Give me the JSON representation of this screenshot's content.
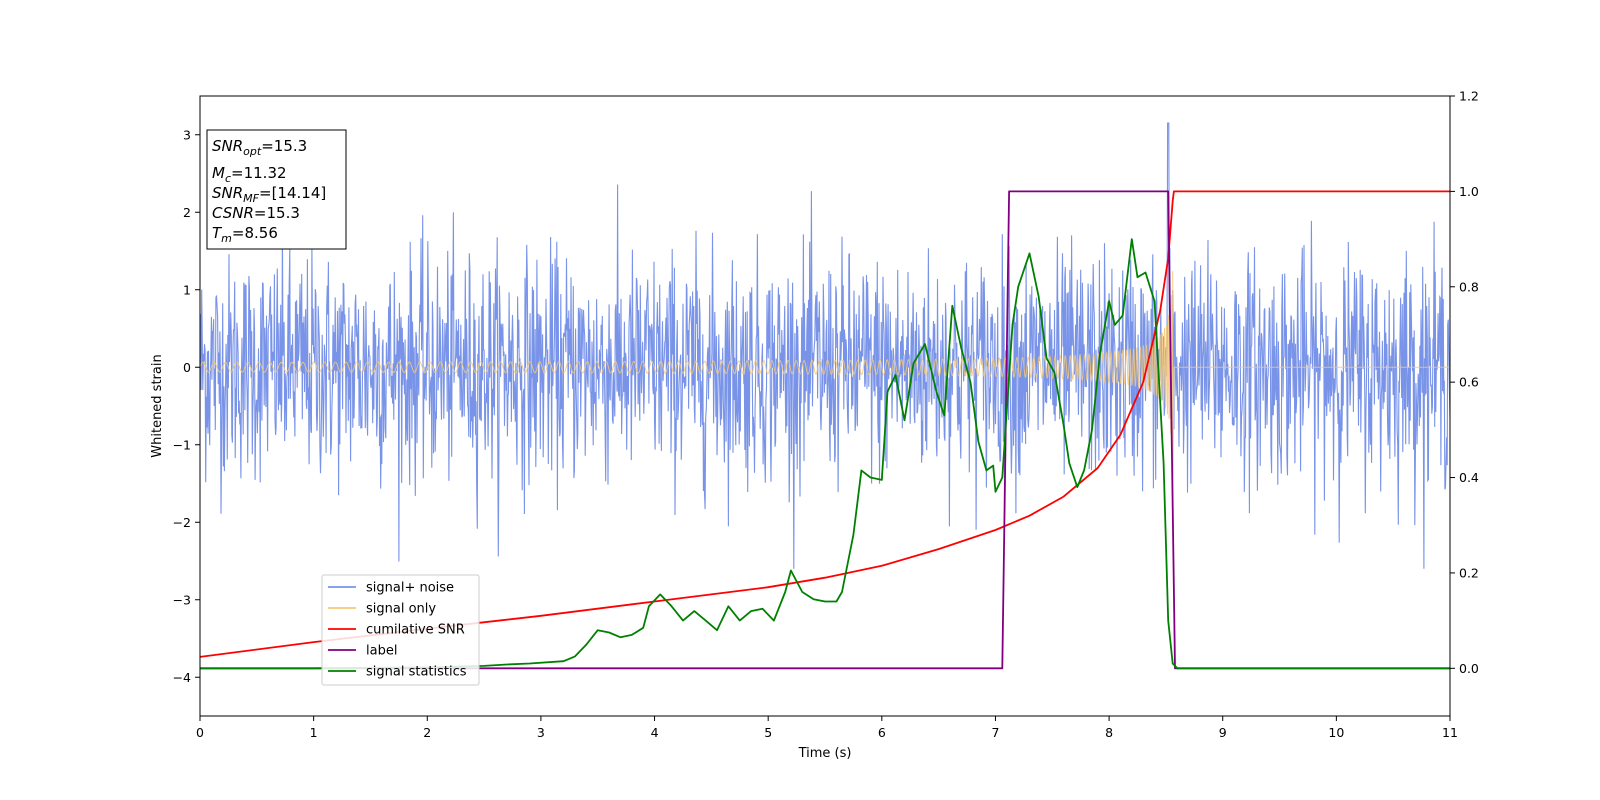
{
  "chart_data": {
    "type": "line",
    "xlabel": "Time (s)",
    "ylabel": "Whitened strain",
    "xlim": [
      0,
      11
    ],
    "ylim": [
      -4.5,
      3.5
    ],
    "y2lim": [
      -0.1,
      1.2
    ],
    "x_ticks": [
      "0",
      "1",
      "2",
      "3",
      "4",
      "5",
      "6",
      "7",
      "8",
      "9",
      "10",
      "11"
    ],
    "y_ticks": [
      "−4",
      "−3",
      "−2",
      "−1",
      "0",
      "1",
      "2",
      "3"
    ],
    "y2_ticks": [
      "0.0",
      "0.2",
      "0.4",
      "0.6",
      "0.8",
      "1.0",
      "1.2"
    ],
    "grid": false,
    "legend_position": "lower-left",
    "info_box": {
      "lines": [
        {
          "sym": "SNR",
          "sub": "opt",
          "rest": "=15.3"
        },
        {
          "sym": "M",
          "sub": "c",
          "rest": "=11.32"
        },
        {
          "sym": "SNR",
          "sub": "MF",
          "rest": "=[14.14]"
        },
        {
          "sym": "CSNR",
          "sub": "",
          "rest": "=15.3"
        },
        {
          "sym": "T",
          "sub": "m",
          "rest": "=8.56"
        }
      ]
    },
    "series": [
      {
        "name": "signal+ noise",
        "color": "#7893e8",
        "axis": "left",
        "description": "whitened noise with std ~0.75 spanning t=0..11, spikes to about ±2.5, peak 3.15 near t=8.52"
      },
      {
        "name": "signal only",
        "color": "#f5c878",
        "axis": "left",
        "chirp": {
          "t_merge": 8.56,
          "amp_start": 0.03,
          "amp_end": 1.25,
          "end_dip": -1.95
        }
      },
      {
        "name": "cumilative SNR",
        "color": "#ff0000",
        "axis": "right",
        "points": [
          [
            0,
            0.024
          ],
          [
            1,
            0.055
          ],
          [
            2,
            0.083
          ],
          [
            3,
            0.11
          ],
          [
            4,
            0.14
          ],
          [
            5,
            0.17
          ],
          [
            5.5,
            0.19
          ],
          [
            6,
            0.215
          ],
          [
            6.5,
            0.25
          ],
          [
            7,
            0.29
          ],
          [
            7.3,
            0.32
          ],
          [
            7.6,
            0.36
          ],
          [
            7.9,
            0.42
          ],
          [
            8.1,
            0.49
          ],
          [
            8.3,
            0.6
          ],
          [
            8.45,
            0.75
          ],
          [
            8.52,
            0.86
          ],
          [
            8.56,
            0.98
          ],
          [
            8.57,
            1.0
          ],
          [
            11,
            1.0
          ]
        ]
      },
      {
        "name": "label",
        "color": "#800080",
        "axis": "right",
        "points": [
          [
            0,
            0
          ],
          [
            7.06,
            0
          ],
          [
            7.12,
            1
          ],
          [
            8.52,
            1
          ],
          [
            8.58,
            0
          ],
          [
            11,
            0
          ]
        ]
      },
      {
        "name": "signal statistics",
        "color": "#008000",
        "axis": "right",
        "points": [
          [
            0,
            0
          ],
          [
            1,
            0.0
          ],
          [
            2,
            0.002
          ],
          [
            2.5,
            0.005
          ],
          [
            2.7,
            0.008
          ],
          [
            2.9,
            0.01
          ],
          [
            3.2,
            0.015
          ],
          [
            3.3,
            0.025
          ],
          [
            3.4,
            0.05
          ],
          [
            3.5,
            0.08
          ],
          [
            3.6,
            0.075
          ],
          [
            3.7,
            0.065
          ],
          [
            3.8,
            0.07
          ],
          [
            3.9,
            0.085
          ],
          [
            3.95,
            0.13
          ],
          [
            4.05,
            0.155
          ],
          [
            4.15,
            0.13
          ],
          [
            4.25,
            0.1
          ],
          [
            4.35,
            0.12
          ],
          [
            4.45,
            0.1
          ],
          [
            4.55,
            0.08
          ],
          [
            4.65,
            0.13
          ],
          [
            4.75,
            0.1
          ],
          [
            4.85,
            0.12
          ],
          [
            4.95,
            0.125
          ],
          [
            5.05,
            0.1
          ],
          [
            5.15,
            0.16
          ],
          [
            5.2,
            0.205
          ],
          [
            5.3,
            0.16
          ],
          [
            5.4,
            0.145
          ],
          [
            5.5,
            0.14
          ],
          [
            5.6,
            0.14
          ],
          [
            5.65,
            0.16
          ],
          [
            5.75,
            0.28
          ],
          [
            5.82,
            0.415
          ],
          [
            5.9,
            0.4
          ],
          [
            6.0,
            0.395
          ],
          [
            6.05,
            0.58
          ],
          [
            6.12,
            0.615
          ],
          [
            6.2,
            0.52
          ],
          [
            6.28,
            0.64
          ],
          [
            6.38,
            0.68
          ],
          [
            6.48,
            0.58
          ],
          [
            6.55,
            0.53
          ],
          [
            6.62,
            0.76
          ],
          [
            6.7,
            0.67
          ],
          [
            6.78,
            0.6
          ],
          [
            6.85,
            0.475
          ],
          [
            6.92,
            0.415
          ],
          [
            6.98,
            0.425
          ],
          [
            7.0,
            0.37
          ],
          [
            7.06,
            0.4
          ],
          [
            7.15,
            0.72
          ],
          [
            7.2,
            0.8
          ],
          [
            7.3,
            0.87
          ],
          [
            7.38,
            0.78
          ],
          [
            7.45,
            0.65
          ],
          [
            7.52,
            0.62
          ],
          [
            7.6,
            0.51
          ],
          [
            7.65,
            0.43
          ],
          [
            7.72,
            0.38
          ],
          [
            7.78,
            0.415
          ],
          [
            7.85,
            0.5
          ],
          [
            7.92,
            0.66
          ],
          [
            8.0,
            0.77
          ],
          [
            8.05,
            0.72
          ],
          [
            8.12,
            0.74
          ],
          [
            8.2,
            0.9
          ],
          [
            8.25,
            0.82
          ],
          [
            8.32,
            0.83
          ],
          [
            8.4,
            0.77
          ],
          [
            8.48,
            0.43
          ],
          [
            8.52,
            0.1
          ],
          [
            8.56,
            0.01
          ],
          [
            8.6,
            0.0
          ],
          [
            11,
            0.0
          ]
        ]
      }
    ]
  }
}
